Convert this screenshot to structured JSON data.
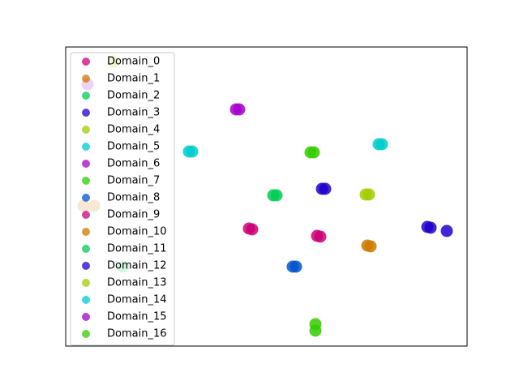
{
  "chart_data": {
    "type": "scatter",
    "xlim": [
      0,
      495
    ],
    "ylim": [
      0,
      369
    ],
    "legend": "upper left",
    "series": [
      {
        "name": "Domain_0",
        "color": "#cc0077",
        "x": [
          226,
          230
        ],
        "y": [
          145,
          144
        ]
      },
      {
        "name": "Domain_1",
        "color": "#cc7a00",
        "x": [
          372,
          376
        ],
        "y": [
          124,
          123
        ]
      },
      {
        "name": "Domain_2",
        "color": "#00cc55",
        "x": [
          256,
          260
        ],
        "y": [
          186,
          186
        ]
      },
      {
        "name": "Domain_3",
        "color": "#2200cc",
        "x": [
          316,
          320
        ],
        "y": [
          194,
          194
        ]
      },
      {
        "name": "Domain_4",
        "color": "#a3cc00",
        "x": [
          370,
          374
        ],
        "y": [
          187,
          187
        ]
      },
      {
        "name": "Domain_5",
        "color": "#00cccc",
        "x": [
          386,
          390
        ],
        "y": [
          249,
          249
        ]
      },
      {
        "name": "Domain_6",
        "color": "#a300cc",
        "x": [
          210,
          214
        ],
        "y": [
          292,
          292
        ]
      },
      {
        "name": "Domain_7",
        "color": "#33cc00",
        "x": [
          302,
          306
        ],
        "y": [
          239,
          239
        ]
      },
      {
        "name": "Domain_8",
        "color": "#0055cc",
        "x": [
          280,
          284
        ],
        "y": [
          98,
          98
        ]
      },
      {
        "name": "Domain_9",
        "color": "#cc0077",
        "x": [
          310,
          314
        ],
        "y": [
          136,
          135
        ]
      },
      {
        "name": "Domain_10",
        "color": "#cc7a00",
        "x": [
          22,
          35
        ],
        "y": [
          173,
          173
        ]
      },
      {
        "name": "Domain_11",
        "color": "#00cc55",
        "x": [
          71
        ],
        "y": [
          98
        ]
      },
      {
        "name": "Domain_12",
        "color": "#2200cc",
        "x": [
          446,
          450,
          470
        ],
        "y": [
          147,
          146,
          142
        ]
      },
      {
        "name": "Domain_13",
        "color": "#a3cc00",
        "x": [
          59
        ],
        "y": [
          351
        ]
      },
      {
        "name": "Domain_14",
        "color": "#00cccc",
        "x": [
          152,
          156
        ],
        "y": [
          240,
          240
        ]
      },
      {
        "name": "Domain_15",
        "color": "#a300cc",
        "x": [
          27
        ],
        "y": [
          323
        ]
      },
      {
        "name": "Domain_16",
        "color": "#33cc00",
        "x": [
          308,
          308
        ],
        "y": [
          27,
          19
        ]
      }
    ]
  }
}
